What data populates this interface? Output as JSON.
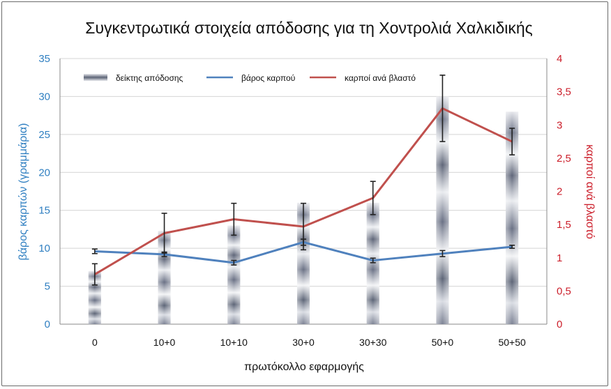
{
  "chart_data": {
    "type": "bar",
    "title": "Συγκεντρωτικά στοιχεία απόδοσης για τη Χοντρολιά Χαλκιδικής",
    "xlabel": "πρωτόκολλο εφαρμογής",
    "ylabel_left": "βάρος καρπών (γραμμάρια)",
    "ylabel_right": "καρποί ανά βλαστό",
    "categories": [
      "0",
      "10+0",
      "10+10",
      "30+0",
      "30+30",
      "50+0",
      "50+50"
    ],
    "y_left": {
      "lim": [
        0,
        35
      ],
      "ticks": [
        0,
        5,
        10,
        15,
        20,
        25,
        30,
        35
      ],
      "tick_labels": [
        "0",
        "5",
        "10",
        "15",
        "20",
        "25",
        "30",
        "35"
      ]
    },
    "y_right": {
      "lim": [
        0,
        4
      ],
      "ticks": [
        0,
        0.5,
        1,
        1.5,
        2,
        2.5,
        3,
        3.5,
        4
      ],
      "tick_labels": [
        "0",
        "0,5",
        "1",
        "1,5",
        "2",
        "2,5",
        "3",
        "3,5",
        "4"
      ]
    },
    "grid": true,
    "legend_position": "top-left",
    "series": [
      {
        "name": "δείκτης απόδοσης",
        "kind": "bar",
        "axis": "left",
        "color": "#5d6577",
        "values": [
          7,
          12.3,
          13,
          16,
          16,
          30,
          28
        ]
      },
      {
        "name": "βάρος καρπού",
        "kind": "line",
        "axis": "left",
        "color": "#4f81bd",
        "values": [
          9.6,
          9.2,
          8.1,
          10.8,
          8.4,
          9.3,
          10.2
        ],
        "error": [
          0.3,
          0.3,
          0.3,
          0.4,
          0.3,
          0.4,
          0.2
        ]
      },
      {
        "name": "καρποί ανά βλαστό",
        "kind": "line",
        "axis": "right",
        "color": "#c0504d",
        "values": [
          0.75,
          1.37,
          1.58,
          1.47,
          1.9,
          3.25,
          2.75
        ],
        "error": [
          0.16,
          0.3,
          0.24,
          0.35,
          0.25,
          0.5,
          0.2
        ]
      }
    ]
  }
}
